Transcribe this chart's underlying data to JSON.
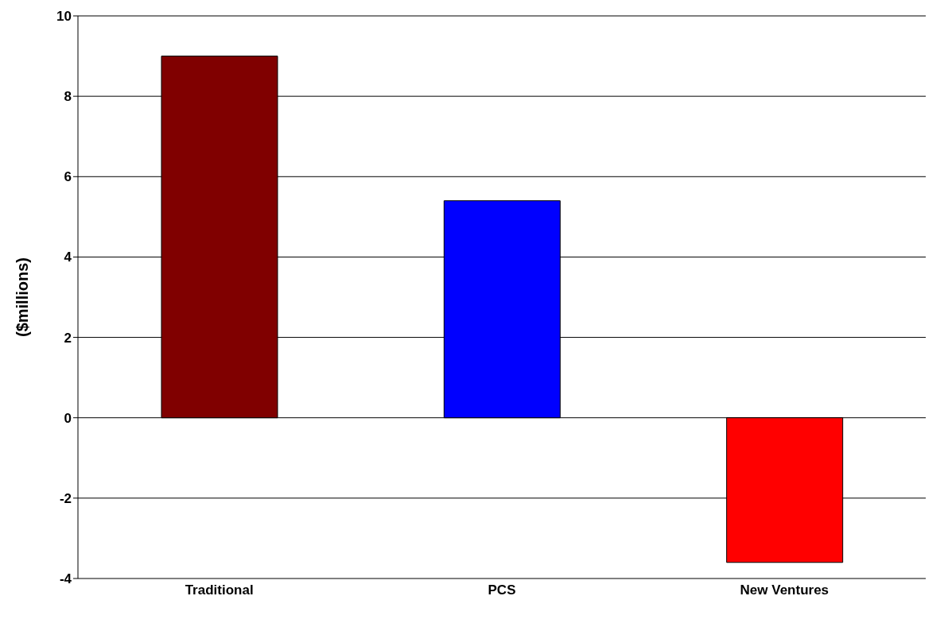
{
  "chart_data": {
    "type": "bar",
    "ylabel": "($millions)",
    "categories": [
      "Traditional",
      "PCS",
      "New Ventures"
    ],
    "values": [
      9.0,
      5.4,
      -3.6
    ],
    "colors": [
      "#800000",
      "#0000ff",
      "#ff0000"
    ],
    "ylim": [
      -4,
      10
    ],
    "yticks": [
      -4,
      -2,
      0,
      2,
      4,
      6,
      8,
      10
    ],
    "grid": "y"
  }
}
